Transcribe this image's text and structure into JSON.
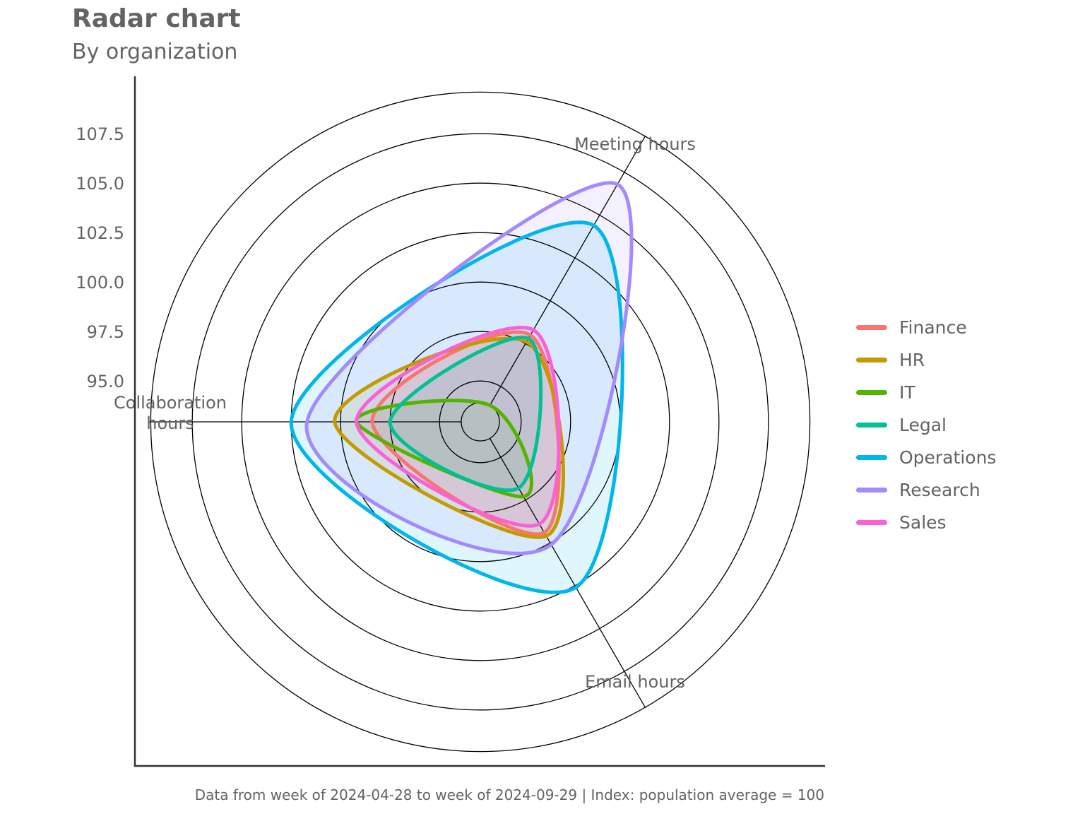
{
  "chart_data": {
    "type": "radar",
    "title": "Radar chart",
    "subtitle": "By organization",
    "caption": "Data from week of 2024-04-28 to week of 2024-09-29 | Index: population average = 100",
    "axes": [
      "Meeting hours",
      "Email hours",
      "Collaboration\nhours"
    ],
    "radial_ticks": [
      "95.0",
      "97.5",
      "100.0",
      "102.5",
      "105.0",
      "107.5"
    ],
    "rlim": [
      93.9,
      109.6
    ],
    "series": [
      {
        "name": "Finance",
        "color": "#F8766D",
        "values": [
          98.0,
          99.4,
          98.4
        ]
      },
      {
        "name": "HR",
        "color": "#C49A00",
        "values": [
          97.6,
          99.6,
          100.3
        ]
      },
      {
        "name": "IT",
        "color": "#53B400",
        "values": [
          93.9,
          97.3,
          99.2
        ]
      },
      {
        "name": "Legal",
        "color": "#00C094",
        "values": [
          97.8,
          96.8,
          97.5
        ]
      },
      {
        "name": "Operations",
        "color": "#00B6EB",
        "values": [
          104.4,
          102.6,
          102.5
        ]
      },
      {
        "name": "Research",
        "color": "#A58AFF",
        "values": [
          106.8,
          100.1,
          101.7
        ]
      },
      {
        "name": "Sales",
        "color": "#FB61D7",
        "values": [
          98.3,
          98.9,
          99.2
        ]
      }
    ],
    "legend_position": "right",
    "grid": true
  }
}
